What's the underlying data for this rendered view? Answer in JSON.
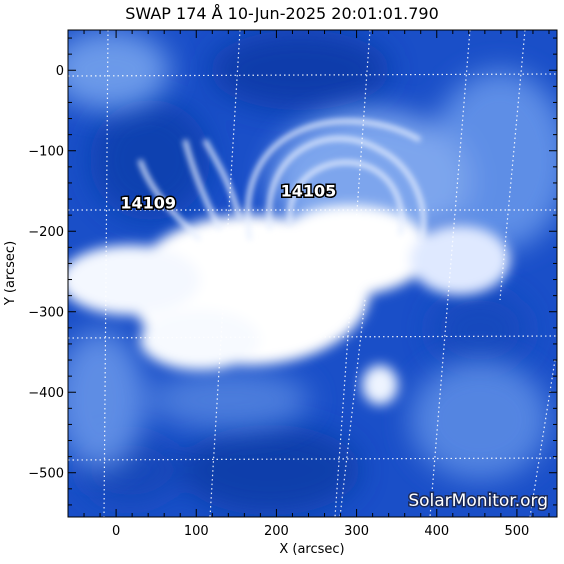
{
  "title": "SWAP 174 Å 10-Jun-2025 20:01:01.790",
  "axes": {
    "x_label": "X (arcsec)",
    "y_label": "Y (arcsec)",
    "x_range": [
      -60,
      550
    ],
    "y_range": [
      -555,
      50
    ],
    "x_ticks": [
      0,
      100,
      200,
      300,
      400,
      500
    ],
    "y_ticks": [
      0,
      -100,
      -200,
      -300,
      -400,
      -500
    ]
  },
  "regions": [
    {
      "id": "14109",
      "label": "14109",
      "x": 40,
      "y": -172
    },
    {
      "id": "14105",
      "label": "14105",
      "x": 240,
      "y": -157
    }
  ],
  "watermark": "SolarMonitor.org",
  "colors": {
    "image_background": "#1a4fc8",
    "corona_bright": "#ffffff",
    "grid": "#ffffff"
  }
}
